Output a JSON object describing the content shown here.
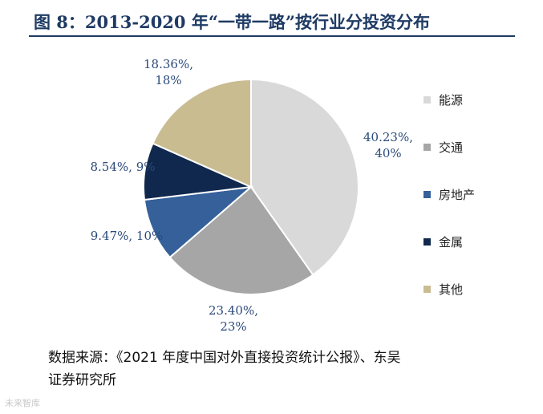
{
  "header": {
    "title": "图 8：2013-2020 年“一带一路”按行业分投资分布"
  },
  "chart_data": {
    "type": "pie",
    "title": "图 8：2013-2020 年“一带一路”按行业分投资分布",
    "slices": [
      {
        "name": "能源",
        "value": 40.23,
        "label_line1": "40.23%,",
        "label_line2": "40%",
        "color": "#d9d9d9"
      },
      {
        "name": "交通",
        "value": 23.4,
        "label_line1": "23.40%,",
        "label_line2": "23%",
        "color": "#a6a6a6"
      },
      {
        "name": "房地产",
        "value": 9.47,
        "label_line1": "9.47%, 10%",
        "label_line2": "",
        "color": "#35609a"
      },
      {
        "name": "金属",
        "value": 8.54,
        "label_line1": "8.54%, 9%",
        "label_line2": "",
        "color": "#10284d"
      },
      {
        "name": "其他",
        "value": 18.36,
        "label_line1": "18.36%,",
        "label_line2": "18%",
        "color": "#c9bc91"
      }
    ],
    "legend_position": "right"
  },
  "legend": {
    "items": [
      "能源",
      "交通",
      "房地产",
      "金属",
      "其他"
    ]
  },
  "footer": {
    "source_line1": "数据来源：《2021 年度中国对外直接投资统计公报》、东吴",
    "source_line2": "证券研究所",
    "watermark": "未来智库"
  },
  "colors": {
    "title": "#1f3b64",
    "label": "#2b4a7a"
  }
}
